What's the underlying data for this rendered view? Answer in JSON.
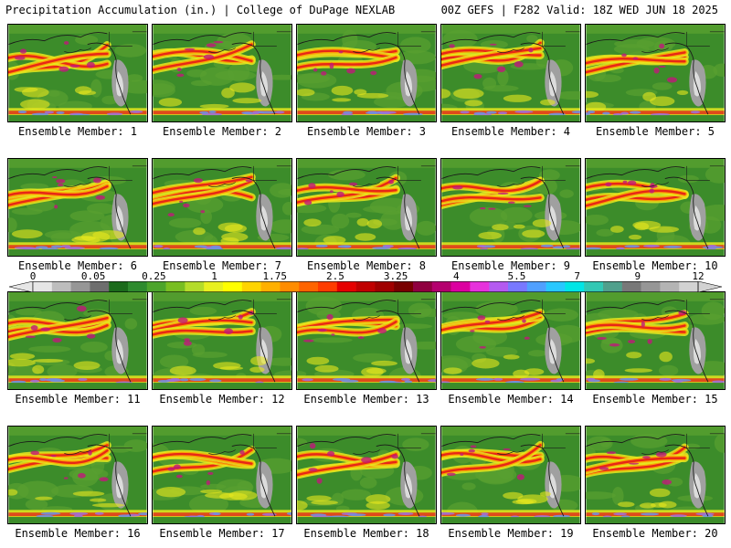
{
  "header": {
    "left": "Precipitation Accumulation (in.) | College of DuPage NEXLAB",
    "right": "00Z GEFS | F282 Valid: 18Z WED JUN 18 2025"
  },
  "panels": [
    {
      "caption": "Ensemble Member: 1"
    },
    {
      "caption": "Ensemble Member: 2"
    },
    {
      "caption": "Ensemble Member: 3"
    },
    {
      "caption": "Ensemble Member: 4"
    },
    {
      "caption": "Ensemble Member: 5"
    },
    {
      "caption": "Ensemble Member: 6"
    },
    {
      "caption": "Ensemble Member: 7"
    },
    {
      "caption": "Ensemble Member: 8"
    },
    {
      "caption": "Ensemble Member: 9"
    },
    {
      "caption": "Ensemble Member: 10"
    },
    {
      "caption": "Ensemble Member: 11"
    },
    {
      "caption": "Ensemble Member: 12"
    },
    {
      "caption": "Ensemble Member: 13"
    },
    {
      "caption": "Ensemble Member: 14"
    },
    {
      "caption": "Ensemble Member: 15"
    },
    {
      "caption": "Ensemble Member: 16"
    },
    {
      "caption": "Ensemble Member: 17"
    },
    {
      "caption": "Ensemble Member: 18"
    },
    {
      "caption": "Ensemble Member: 19"
    },
    {
      "caption": "Ensemble Member: 20"
    }
  ],
  "scale": {
    "labels": [
      "0",
      "0.05",
      "0.25",
      "1",
      "1.75",
      "2.5",
      "3.25",
      "4",
      "5.5",
      "7",
      "9",
      "12"
    ],
    "colors": [
      "#e6e6e6",
      "#bdbdbd",
      "#969696",
      "#6e6e6e",
      "#1b6b1b",
      "#2e8b2e",
      "#4ca52b",
      "#78be21",
      "#b4dc2a",
      "#e8f020",
      "#ffff00",
      "#ffd400",
      "#ffb000",
      "#ff8c00",
      "#ff6400",
      "#ff3c00",
      "#e60000",
      "#c00000",
      "#a00000",
      "#780000",
      "#900040",
      "#b4006e",
      "#dc00a0",
      "#e632dc",
      "#b45af0",
      "#7878ff",
      "#50a0ff",
      "#28c8ff",
      "#00e6e6",
      "#32c8b4",
      "#50a08c",
      "#787878",
      "#969696",
      "#b4b4b4",
      "#d2d2d2"
    ]
  },
  "map_colors": {
    "ocean": "#3c8c2a",
    "ocean_light": "#58a030",
    "dry": "#a0a0a0",
    "dry_light": "#dcdcdc",
    "band_yellow": "#e8e81e",
    "band_orange": "#ff9a00",
    "band_red": "#e41a1a",
    "band_magenta": "#c0187a",
    "tropics_blue": "#7090e0",
    "tropics_violet": "#a070d8",
    "coast": "#1a1a1a"
  }
}
